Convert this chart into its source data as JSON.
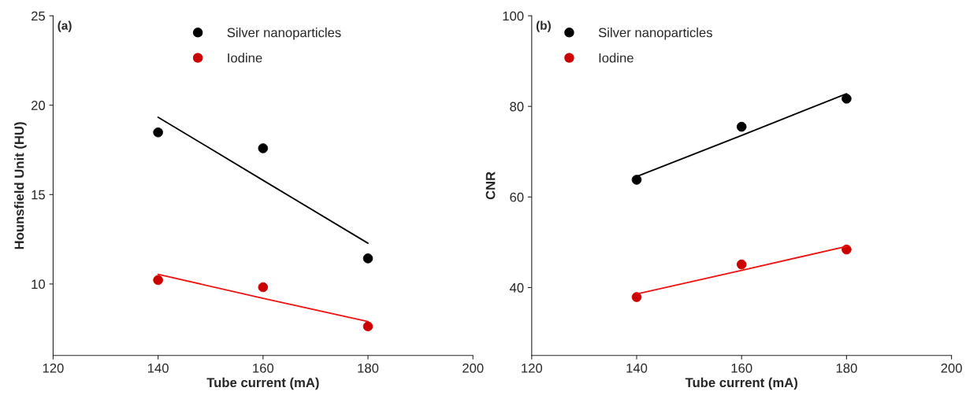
{
  "chart_data": [
    {
      "type": "scatter",
      "annotations": [
        "(a)"
      ],
      "xlabel": "Tube current (mA)",
      "ylabel": "Hounsfield Unit (HU)",
      "x": [
        140,
        160,
        180
      ],
      "series": [
        {
          "name": "Silver nanoparticles",
          "color": "#000000",
          "values": [
            18.48,
            17.59,
            11.43
          ],
          "marker": "circle"
        },
        {
          "name": "Iodine",
          "color": "#cc0000",
          "values": [
            10.22,
            9.82,
            7.63
          ],
          "marker": "circle"
        },
        {
          "type": "line",
          "color": "#000000",
          "values": [
            19.33,
            15.8,
            12.28
          ],
          "line_style": "solid"
        },
        {
          "type": "line",
          "color": "#ee1111",
          "values": [
            10.54,
            9.2,
            7.9
          ],
          "line_style": "solid"
        }
      ],
      "xlim": [
        120,
        200
      ],
      "xticks": [
        120,
        140,
        160,
        180,
        200
      ],
      "ylim": [
        6,
        25
      ],
      "yticks": [
        10,
        15,
        20,
        25
      ],
      "legend": "top"
    },
    {
      "type": "scatter",
      "annotations": [
        "(b)"
      ],
      "xlabel": "Tube current (mA)",
      "ylabel": "CNR",
      "x": [
        140,
        160,
        180
      ],
      "series": [
        {
          "name": "Silver nanoparticles",
          "color": "#000000",
          "values": [
            63.8,
            75.5,
            81.7
          ],
          "marker": "circle"
        },
        {
          "name": "Iodine",
          "color": "#cc0000",
          "values": [
            37.9,
            45.1,
            48.4
          ],
          "marker": "circle"
        },
        {
          "type": "line",
          "color": "#000000",
          "values": [
            64.5,
            73.6,
            82.8
          ],
          "line_style": "solid"
        },
        {
          "type": "line",
          "color": "#ee1111",
          "values": [
            38.6,
            43.8,
            49.1
          ],
          "line_style": "solid"
        }
      ],
      "xlim": [
        120,
        200
      ],
      "xticks": [
        120,
        140,
        160,
        180,
        200
      ],
      "ylim": [
        25,
        100
      ],
      "yticks": [
        40,
        60,
        80,
        100
      ],
      "legend": "top left"
    }
  ]
}
